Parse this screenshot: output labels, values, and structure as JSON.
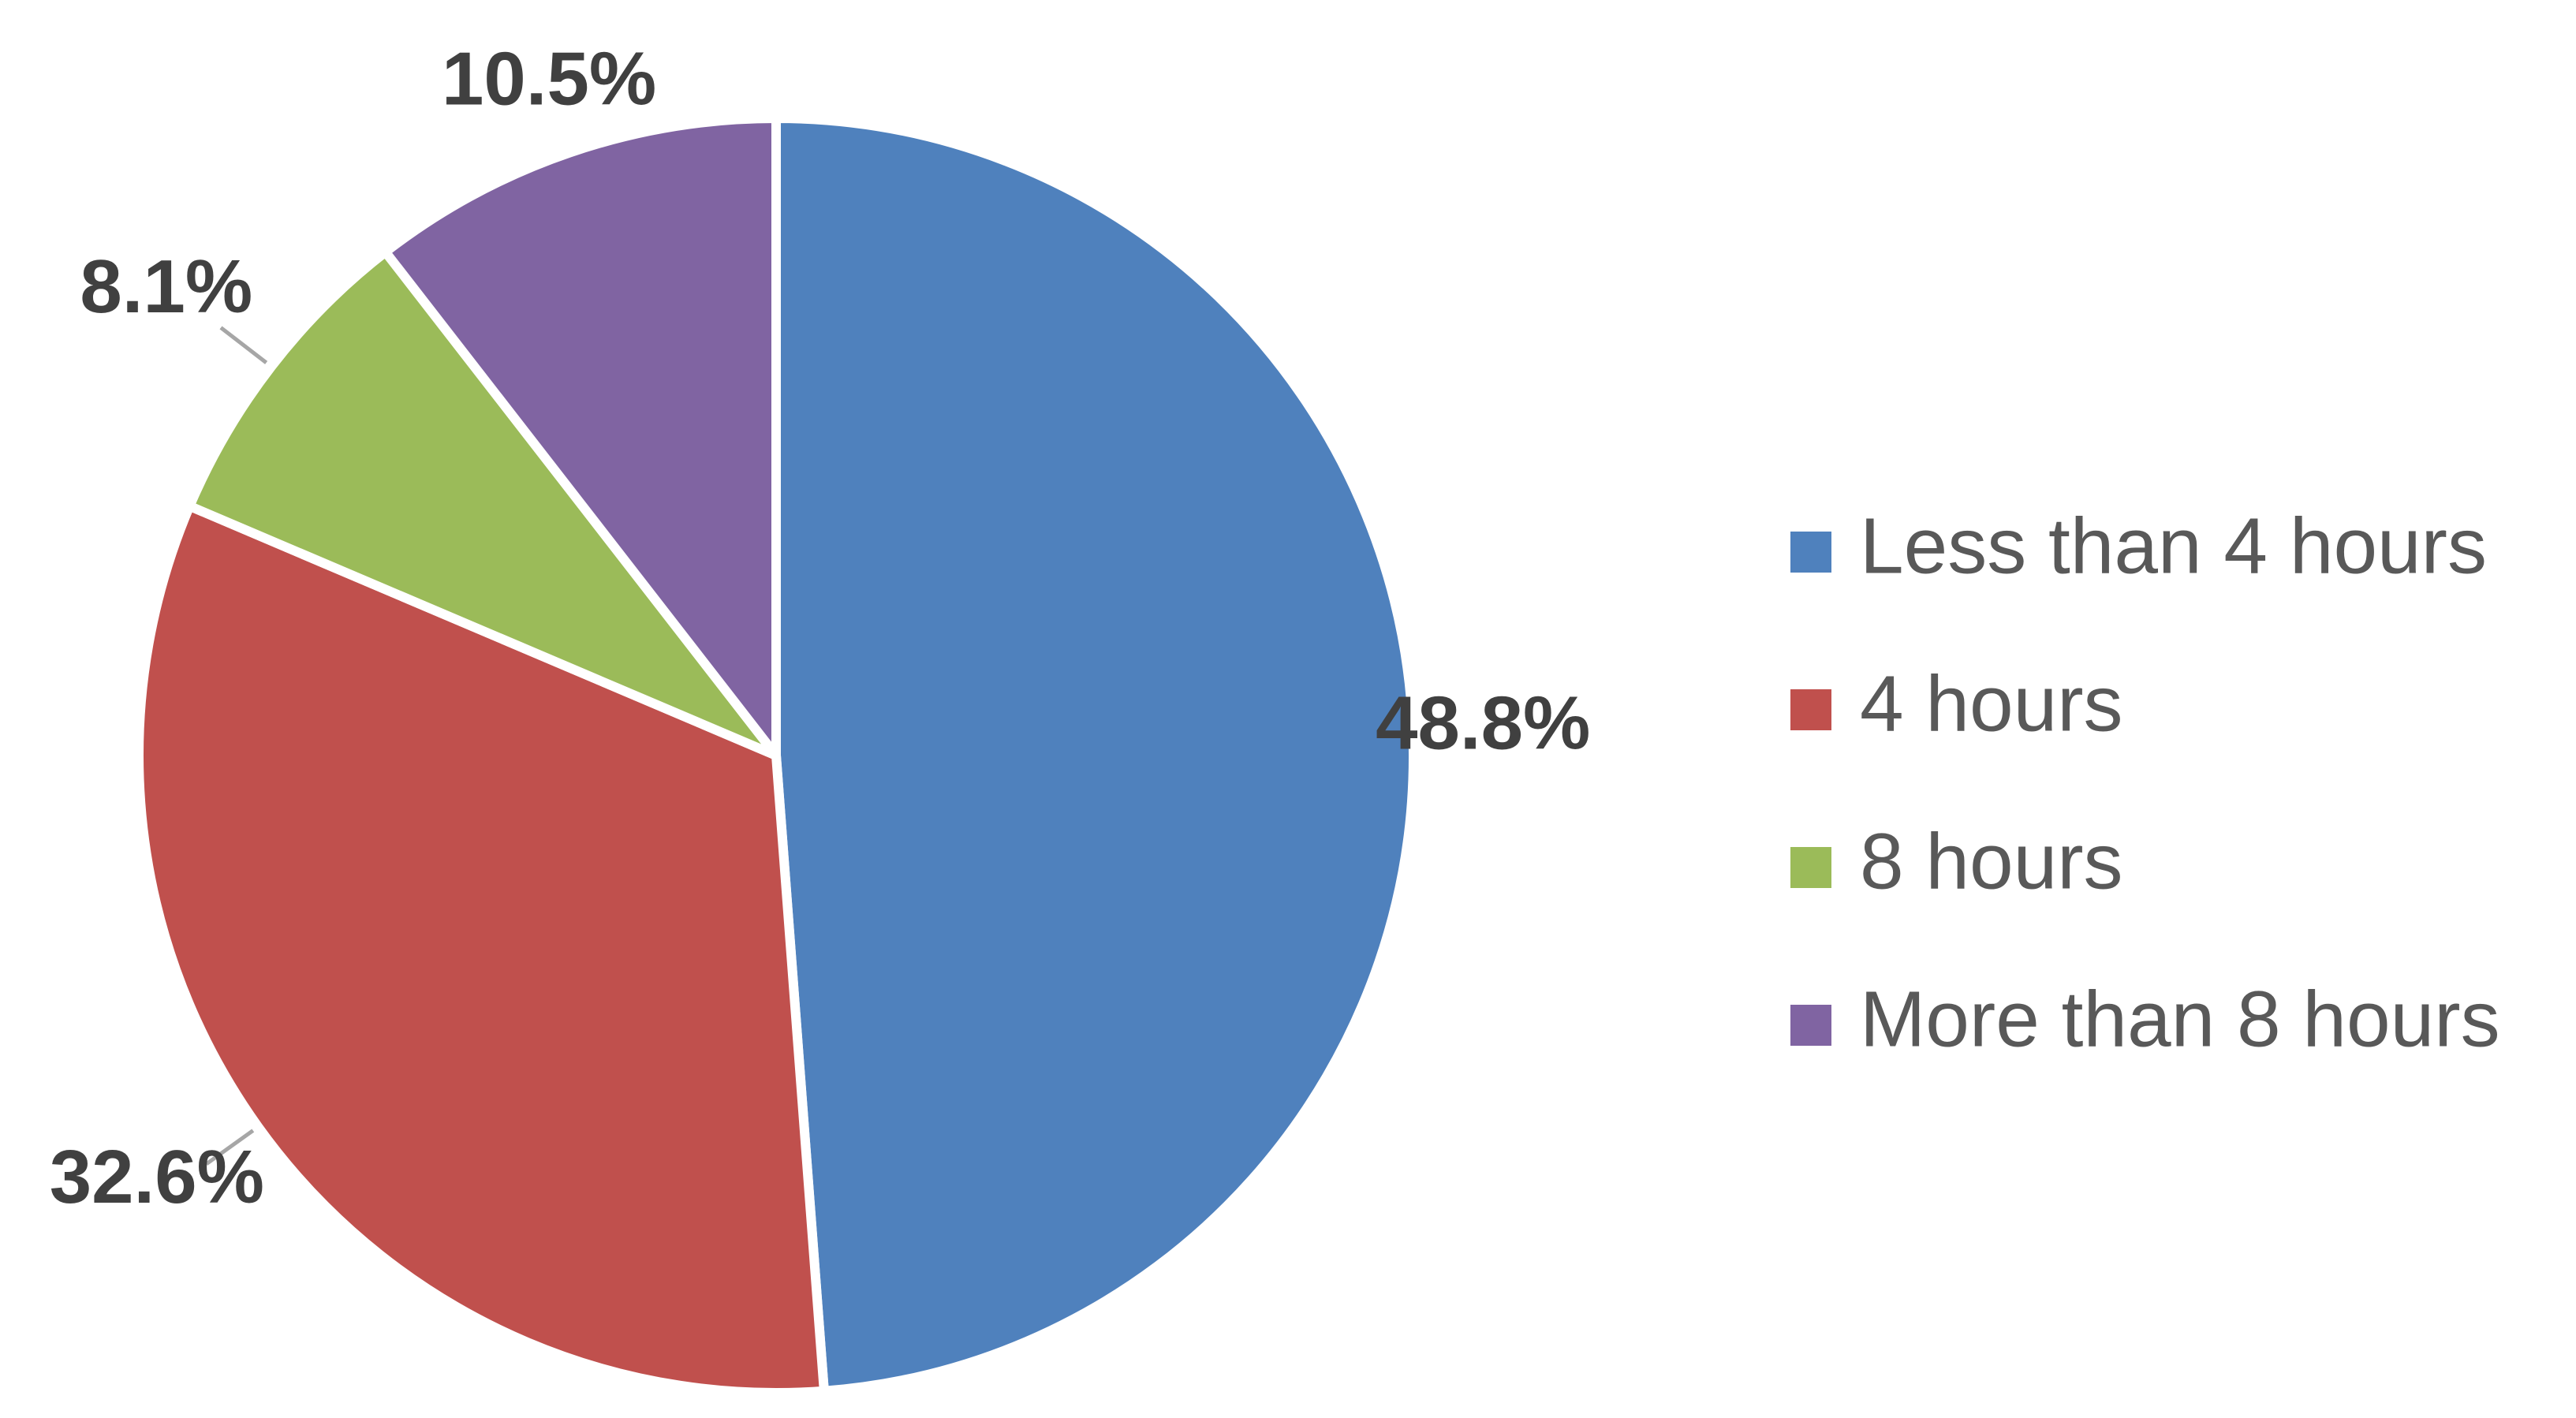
{
  "chart_data": {
    "type": "pie",
    "title": "",
    "categories": [
      "Less than 4 hours",
      "4 hours",
      "8 hours",
      "More than 8 hours"
    ],
    "values": [
      48.8,
      32.6,
      8.1,
      10.5
    ],
    "value_labels": [
      "48.8%",
      "32.6%",
      "8.1%",
      "10.5%"
    ],
    "colors": [
      "#4F81BD",
      "#C0504D",
      "#9BBB59",
      "#8064A2"
    ],
    "start_angle_deg": 0,
    "direction": "clockwise",
    "legend_position": "right",
    "slice_separator_color": "#FFFFFF",
    "leader_line_color": "#A6A6A6"
  }
}
